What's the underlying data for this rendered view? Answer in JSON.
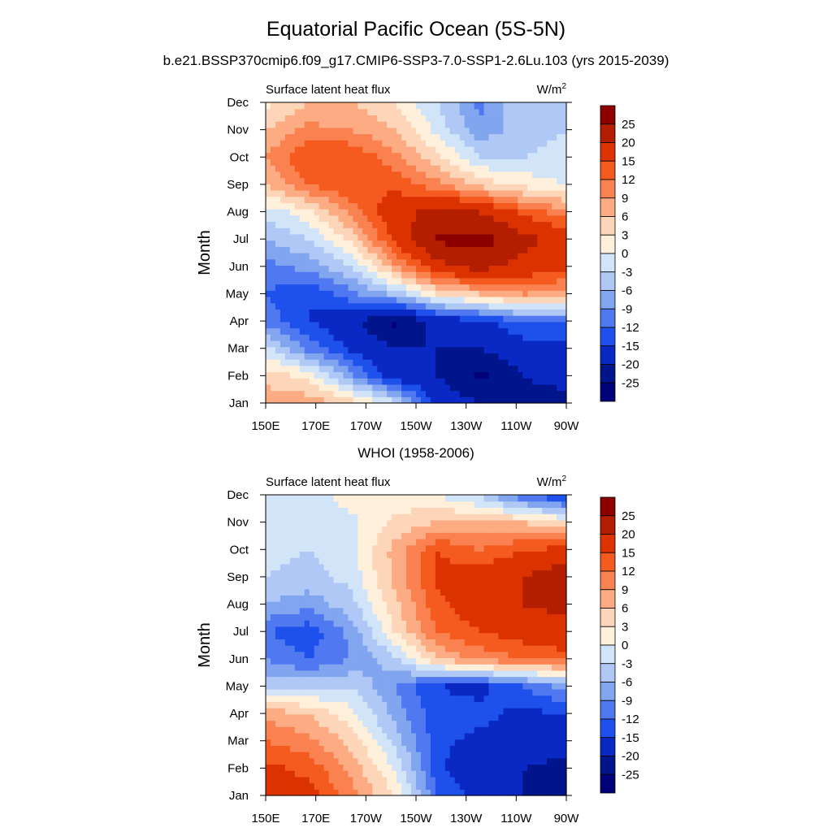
{
  "page": {
    "title": "Equatorial Pacific Ocean (5S-5N)",
    "subtitle": "b.e21.BSSP370cmip6.f09_g17.CMIP6-SSP3-7.0-SSP1-2.6Lu.103 (yrs 2015-2039)",
    "panel2_title": "WHOI (1958-2006)"
  },
  "chart_data": [
    {
      "type": "heatmap",
      "name": "model",
      "left_label": "Surface latent heat flux",
      "right_label": "W/m",
      "right_label_sup": "2",
      "ylabel": "Month",
      "x_ticks": [
        "150E",
        "170E",
        "170W",
        "150W",
        "130W",
        "110W",
        "90W"
      ],
      "y_ticks": [
        "Jan",
        "Feb",
        "Mar",
        "Apr",
        "May",
        "Jun",
        "Jul",
        "Aug",
        "Sep",
        "Oct",
        "Nov",
        "Dec"
      ],
      "x_range": [
        "150E",
        "90W"
      ],
      "y_range": [
        "Jan",
        "Dec"
      ],
      "colorbar_labels": [
        "25",
        "20",
        "15",
        "12",
        "9",
        "6",
        "3",
        "0",
        "-3",
        "-6",
        "-9",
        "-12",
        "-15",
        "-20",
        "-25"
      ],
      "colorbar_colors": [
        "#8c0000",
        "#b41e00",
        "#dc3200",
        "#f55a1e",
        "#fa8250",
        "#fcab82",
        "#fdd6b9",
        "#fff0dc",
        "#d2e4f8",
        "#b0c8f5",
        "#82a5f0",
        "#5078f0",
        "#1e50eb",
        "#0a28c3",
        "#00148c",
        "#000078"
      ],
      "z_grid": [
        [
          8,
          8,
          5,
          -2,
          -16,
          -20,
          -22,
          -22
        ],
        [
          5,
          2,
          -8,
          -17,
          -20,
          -26,
          -20,
          -18
        ],
        [
          -2,
          -10,
          -16,
          -20,
          -20,
          -20,
          -17,
          -16
        ],
        [
          -10,
          -15,
          -18,
          -26,
          -18,
          -16,
          -12,
          -12
        ],
        [
          -12,
          -15,
          -10,
          -5,
          3,
          6,
          9,
          8
        ],
        [
          -10,
          -8,
          -3,
          8,
          18,
          22,
          18,
          16
        ],
        [
          -6,
          -3,
          4,
          16,
          26,
          27,
          22,
          18
        ],
        [
          -2,
          2,
          10,
          18,
          22,
          20,
          14,
          10
        ],
        [
          6,
          12,
          15,
          14,
          10,
          5,
          2,
          0
        ],
        [
          9,
          15,
          15,
          10,
          4,
          -3,
          -3,
          -2
        ],
        [
          6,
          10,
          9,
          6,
          -1,
          -8,
          -4,
          -3
        ],
        [
          2,
          6,
          6,
          3,
          -3,
          -10,
          -3,
          -3
        ]
      ]
    },
    {
      "type": "heatmap",
      "name": "observations",
      "left_label": "Surface latent heat flux",
      "right_label": "W/m",
      "right_label_sup": "2",
      "ylabel": "Month",
      "x_ticks": [
        "150E",
        "170E",
        "170W",
        "150W",
        "130W",
        "110W",
        "90W"
      ],
      "y_ticks": [
        "Jan",
        "Feb",
        "Mar",
        "Apr",
        "May",
        "Jun",
        "Jul",
        "Aug",
        "Sep",
        "Oct",
        "Nov",
        "Dec"
      ],
      "x_range": [
        "150E",
        "90W"
      ],
      "y_range": [
        "Jan",
        "Dec"
      ],
      "colorbar_labels": [
        "25",
        "20",
        "15",
        "12",
        "9",
        "6",
        "3",
        "0",
        "-3",
        "-6",
        "-9",
        "-12",
        "-15",
        "-20",
        "-25"
      ],
      "colorbar_colors": [
        "#8c0000",
        "#b41e00",
        "#dc3200",
        "#f55a1e",
        "#fa8250",
        "#fcab82",
        "#fdd6b9",
        "#fff0dc",
        "#d2e4f8",
        "#b0c8f5",
        "#82a5f0",
        "#5078f0",
        "#1e50eb",
        "#0a28c3",
        "#00148c",
        "#000078"
      ],
      "z_grid": [
        [
          15,
          17,
          10,
          3,
          -12,
          -16,
          -20,
          -24
        ],
        [
          16,
          14,
          8,
          0,
          -14,
          -20,
          -20,
          -22
        ],
        [
          12,
          10,
          5,
          -4,
          -14,
          -16,
          -16,
          -17
        ],
        [
          8,
          6,
          1,
          -7,
          -14,
          -14,
          -16,
          -15
        ],
        [
          -4,
          -4,
          -3,
          -9,
          -15,
          -16,
          -12,
          -8
        ],
        [
          -9,
          -12,
          -9,
          -4,
          6,
          10,
          12,
          13
        ],
        [
          -12,
          -14,
          -8,
          3,
          12,
          15,
          17,
          19
        ],
        [
          -6,
          -8,
          -4,
          5,
          14,
          18,
          20,
          21
        ],
        [
          -3,
          -4,
          -2,
          7,
          16,
          17,
          20,
          24
        ],
        [
          -2,
          -3,
          -1,
          7,
          15,
          12,
          15,
          16
        ],
        [
          -3,
          -3,
          -1,
          4,
          6,
          7,
          6,
          3
        ],
        [
          -2,
          -2,
          2,
          1,
          0,
          -4,
          -12,
          -16
        ]
      ]
    }
  ]
}
